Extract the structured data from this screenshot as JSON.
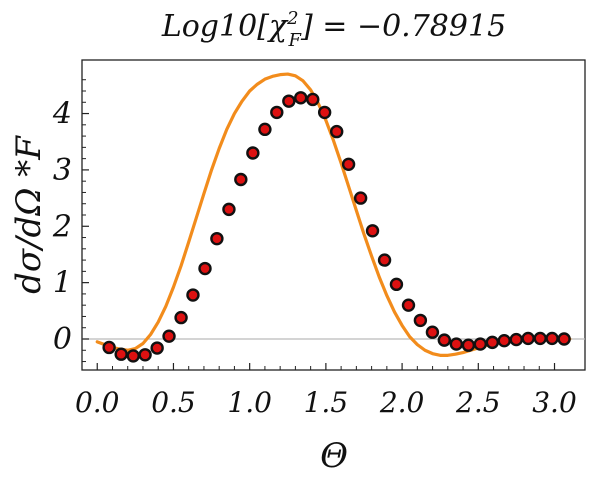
{
  "chart_data": {
    "type": "scatter",
    "title_prefix": "Log10[",
    "title_chi": "χ",
    "title_sup": "2",
    "title_sub": "F",
    "title_suffix": "] = −0.78915",
    "xlabel": "Θ",
    "ylabel": "dσ/dΩ *F",
    "xlim": [
      -0.1,
      3.2
    ],
    "ylim": [
      -0.55,
      4.95
    ],
    "x_ticks": [
      0.0,
      0.5,
      1.0,
      1.5,
      2.0,
      2.5,
      3.0
    ],
    "x_tick_labels": [
      "0.0",
      "0.5",
      "1.0",
      "1.5",
      "2.0",
      "2.5",
      "3.0"
    ],
    "y_ticks": [
      0,
      1,
      2,
      3,
      4
    ],
    "y_tick_labels": [
      "0",
      "1",
      "2",
      "3",
      "4"
    ],
    "zero_line": true,
    "grid": false,
    "colors": {
      "points_fill": "#dd1111",
      "points_edge": "#111111",
      "curve": "#f28c1c",
      "zero_line": "#bbbbbb",
      "frame": "#222222"
    },
    "series": [
      {
        "kind": "points",
        "x": [
          0.078,
          0.157,
          0.236,
          0.314,
          0.393,
          0.471,
          0.55,
          0.628,
          0.707,
          0.785,
          0.864,
          0.942,
          1.021,
          1.1,
          1.178,
          1.257,
          1.335,
          1.414,
          1.492,
          1.571,
          1.649,
          1.728,
          1.806,
          1.885,
          1.963,
          2.042,
          2.12,
          2.199,
          2.277,
          2.356,
          2.435,
          2.513,
          2.592,
          2.67,
          2.749,
          2.827,
          2.906,
          2.984,
          3.063
        ],
        "y": [
          -0.15,
          -0.27,
          -0.3,
          -0.28,
          -0.16,
          0.05,
          0.38,
          0.78,
          1.25,
          1.78,
          2.3,
          2.83,
          3.3,
          3.72,
          4.02,
          4.22,
          4.28,
          4.25,
          4.02,
          3.68,
          3.1,
          2.5,
          1.92,
          1.4,
          0.97,
          0.6,
          0.33,
          0.12,
          -0.02,
          -0.09,
          -0.11,
          -0.09,
          -0.06,
          -0.03,
          -0.01,
          0.01,
          0.01,
          0.01,
          0.0
        ]
      },
      {
        "kind": "curve",
        "x": [
          0.0,
          0.05,
          0.1,
          0.15,
          0.2,
          0.25,
          0.3,
          0.35,
          0.4,
          0.45,
          0.5,
          0.55,
          0.6,
          0.65,
          0.7,
          0.75,
          0.8,
          0.85,
          0.9,
          0.95,
          1.0,
          1.05,
          1.1,
          1.15,
          1.2,
          1.25,
          1.3,
          1.35,
          1.4,
          1.45,
          1.5,
          1.55,
          1.6,
          1.65,
          1.7,
          1.75,
          1.8,
          1.85,
          1.9,
          1.95,
          2.0,
          2.05,
          2.1,
          2.15,
          2.2,
          2.25,
          2.3,
          2.35,
          2.4,
          2.45,
          2.5,
          2.55,
          2.6,
          2.65,
          2.7,
          2.75,
          2.8,
          2.85,
          2.9,
          2.95,
          3.0,
          3.05,
          3.1
        ],
        "y": [
          -0.05,
          -0.1,
          -0.15,
          -0.18,
          -0.2,
          -0.17,
          -0.08,
          0.08,
          0.3,
          0.58,
          0.92,
          1.3,
          1.72,
          2.15,
          2.58,
          3.0,
          3.38,
          3.72,
          4.0,
          4.22,
          4.4,
          4.52,
          4.61,
          4.66,
          4.69,
          4.7,
          4.67,
          4.58,
          4.42,
          4.18,
          3.88,
          3.52,
          3.12,
          2.7,
          2.28,
          1.86,
          1.47,
          1.1,
          0.77,
          0.48,
          0.24,
          0.04,
          -0.1,
          -0.2,
          -0.26,
          -0.29,
          -0.29,
          -0.27,
          -0.24,
          -0.2,
          -0.16,
          -0.12,
          -0.08,
          -0.05,
          -0.03,
          -0.01,
          0.0,
          0.01,
          0.01,
          0.01,
          0.0,
          0.0,
          0.0
        ]
      }
    ]
  }
}
